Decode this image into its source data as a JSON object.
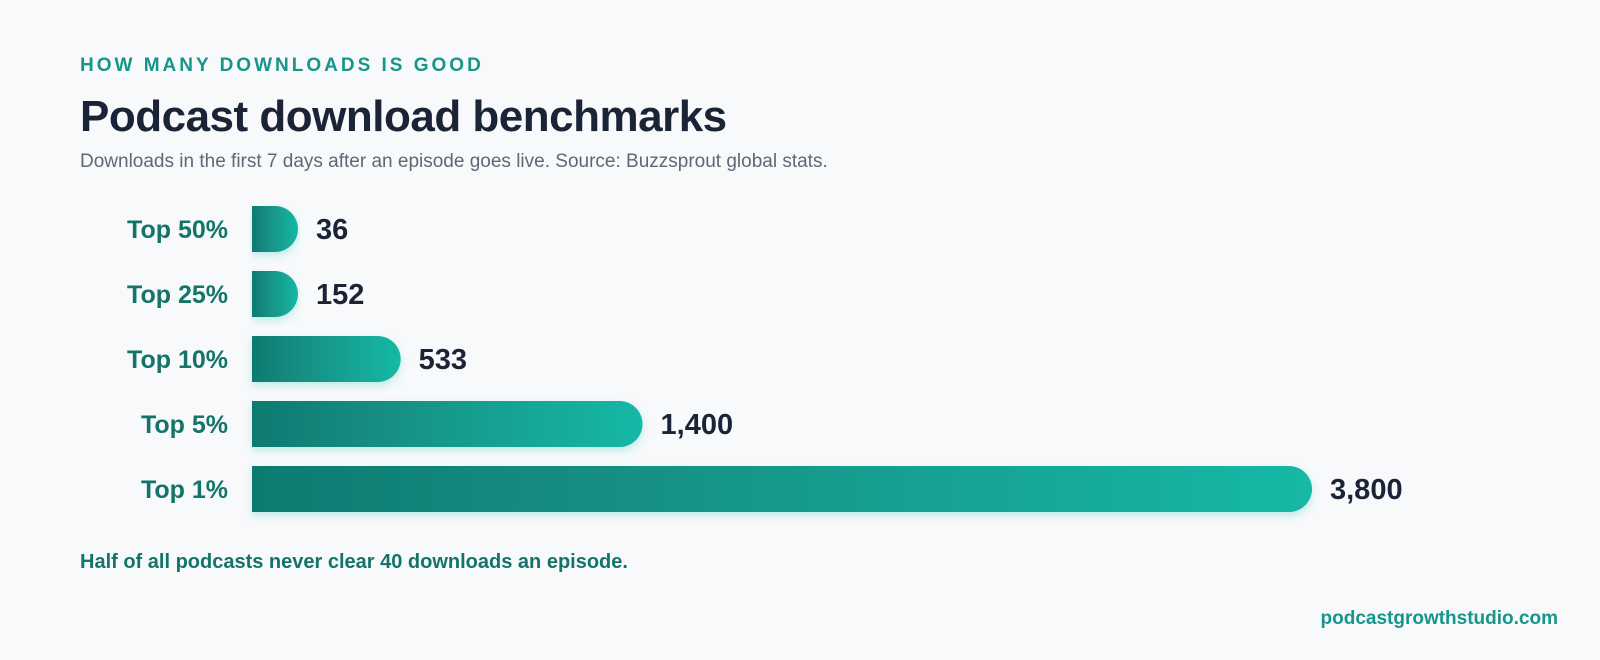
{
  "header": {
    "eyebrow": "HOW MANY DOWNLOADS IS GOOD",
    "title": "Podcast download benchmarks",
    "subtitle": "Downloads in the first 7 days after an episode goes live. Source: Buzzsprout global stats."
  },
  "footer": {
    "note": "Half of all podcasts never clear 40 downloads an episode.",
    "credit": "podcastgrowthstudio.com"
  },
  "colors": {
    "bar_start": "#117a70",
    "bar_end": "#14b8a6",
    "category_label": "#147469",
    "value_label": "#1b2436"
  },
  "chart_data": {
    "type": "bar",
    "orientation": "horizontal",
    "title": "Podcast download benchmarks",
    "xlabel": "",
    "ylabel": "",
    "categories": [
      "Top 50%",
      "Top 25%",
      "Top 10%",
      "Top 5%",
      "Top 1%"
    ],
    "values": [
      36,
      152,
      533,
      1400,
      3800
    ],
    "value_labels": [
      "36",
      "152",
      "533",
      "1,400",
      "3,800"
    ],
    "grid": false,
    "legend": "none"
  }
}
